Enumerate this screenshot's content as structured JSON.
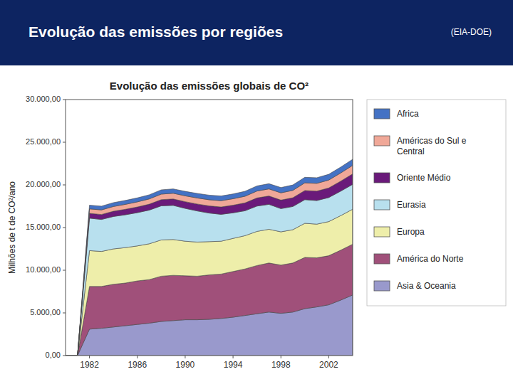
{
  "title": "Evolução das emissões por regiões",
  "subtitle": "(EIA-DOE)",
  "chart_data": {
    "type": "area",
    "stacked": true,
    "title": "Evolução das emissões globais de CO²",
    "ylabel": "Milhões de t de CO²/ano",
    "x": [
      1980,
      1981,
      1982,
      1983,
      1984,
      1985,
      1986,
      1987,
      1988,
      1989,
      1990,
      1991,
      1992,
      1993,
      1994,
      1995,
      1996,
      1997,
      1998,
      1999,
      2000,
      2001,
      2002,
      2003,
      2004
    ],
    "xlim": [
      1980,
      2004
    ],
    "xticks": [
      1982,
      1986,
      1990,
      1994,
      1998,
      2002
    ],
    "ylim": [
      0,
      30000
    ],
    "yticks": [
      {
        "value": 0,
        "label": "0,00"
      },
      {
        "value": 5000,
        "label": "5.000,00"
      },
      {
        "value": 10000,
        "label": "10.000,00"
      },
      {
        "value": 15000,
        "label": "15.000,00"
      },
      {
        "value": 20000,
        "label": "20.000,00"
      },
      {
        "value": 25000,
        "label": "25.000,00"
      },
      {
        "value": 30000,
        "label": "30.000,00"
      }
    ],
    "grid": false,
    "legend": "right",
    "series": [
      {
        "name": "Asia & Oceania",
        "color": "#9999cc",
        "values": [
          0,
          0,
          3100,
          3200,
          3350,
          3500,
          3650,
          3800,
          4000,
          4100,
          4200,
          4200,
          4250,
          4350,
          4500,
          4700,
          4900,
          5100,
          4950,
          5100,
          5500,
          5700,
          5950,
          6500,
          7100
        ]
      },
      {
        "name": "América do Norte",
        "color": "#a0507a",
        "values": [
          0,
          0,
          5000,
          4900,
          5000,
          5000,
          5100,
          5100,
          5300,
          5300,
          5150,
          5100,
          5200,
          5200,
          5350,
          5450,
          5650,
          5750,
          5650,
          5750,
          6000,
          5750,
          5750,
          5850,
          5950
        ]
      },
      {
        "name": "Europa",
        "color": "#eeeeaa",
        "values": [
          0,
          0,
          4200,
          4100,
          4150,
          4150,
          4100,
          4200,
          4250,
          4200,
          4050,
          4000,
          3900,
          3850,
          3880,
          3900,
          4000,
          3950,
          3900,
          3900,
          4000,
          3950,
          4000,
          4050,
          4100
        ]
      },
      {
        "name": "Eurasia",
        "color": "#b8e0ee",
        "values": [
          0,
          0,
          3800,
          3750,
          3800,
          3850,
          3900,
          3950,
          4000,
          4000,
          3850,
          3650,
          3350,
          3150,
          3000,
          2920,
          2970,
          2920,
          2720,
          2720,
          2770,
          2770,
          2820,
          2870,
          2920
        ]
      },
      {
        "name": "Oriente Médio",
        "color": "#6a1a7a",
        "values": [
          0,
          0,
          560,
          580,
          610,
          640,
          660,
          690,
          720,
          750,
          780,
          810,
          840,
          860,
          890,
          920,
          950,
          980,
          1000,
          1020,
          1070,
          1100,
          1120,
          1170,
          1220
        ]
      },
      {
        "name": "Américas do Sul e\nCentral",
        "color": "#f0a898",
        "values": [
          0,
          0,
          530,
          540,
          560,
          580,
          600,
          620,
          650,
          670,
          690,
          710,
          720,
          740,
          760,
          780,
          810,
          830,
          850,
          870,
          900,
          910,
          930,
          960,
          1000
        ]
      },
      {
        "name": "Africa",
        "color": "#4472c4",
        "values": [
          0,
          0,
          430,
          440,
          450,
          460,
          470,
          480,
          500,
          510,
          520,
          530,
          540,
          550,
          560,
          580,
          600,
          610,
          620,
          630,
          650,
          660,
          670,
          690,
          710
        ]
      }
    ]
  }
}
